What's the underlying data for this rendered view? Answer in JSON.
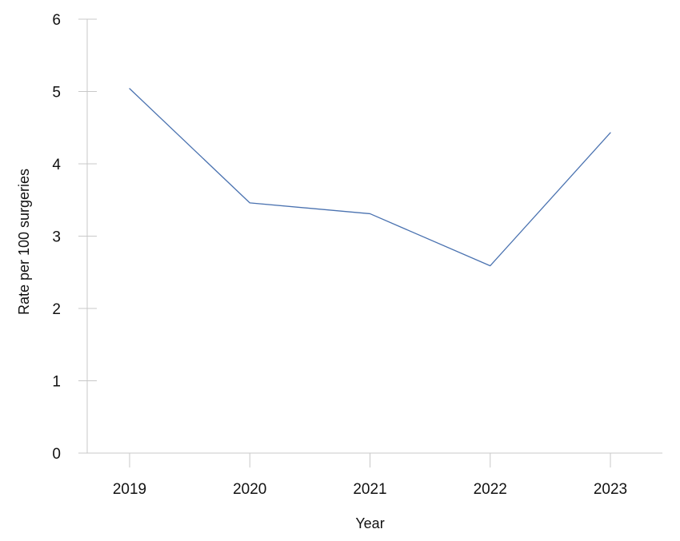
{
  "chart_data": {
    "type": "line",
    "title": "",
    "xlabel": "Year",
    "ylabel": "Rate per 100 surgeries",
    "x": [
      "2019",
      "2020",
      "2021",
      "2022",
      "2023"
    ],
    "series": [
      {
        "values": [
          5.04,
          3.46,
          3.31,
          2.59,
          4.43
        ],
        "color": "#4a72b0"
      }
    ],
    "ylim": [
      0,
      6
    ],
    "yticks": [
      "0",
      "1",
      "2",
      "3",
      "4",
      "5",
      "6"
    ],
    "grid": false,
    "legend": "none"
  }
}
